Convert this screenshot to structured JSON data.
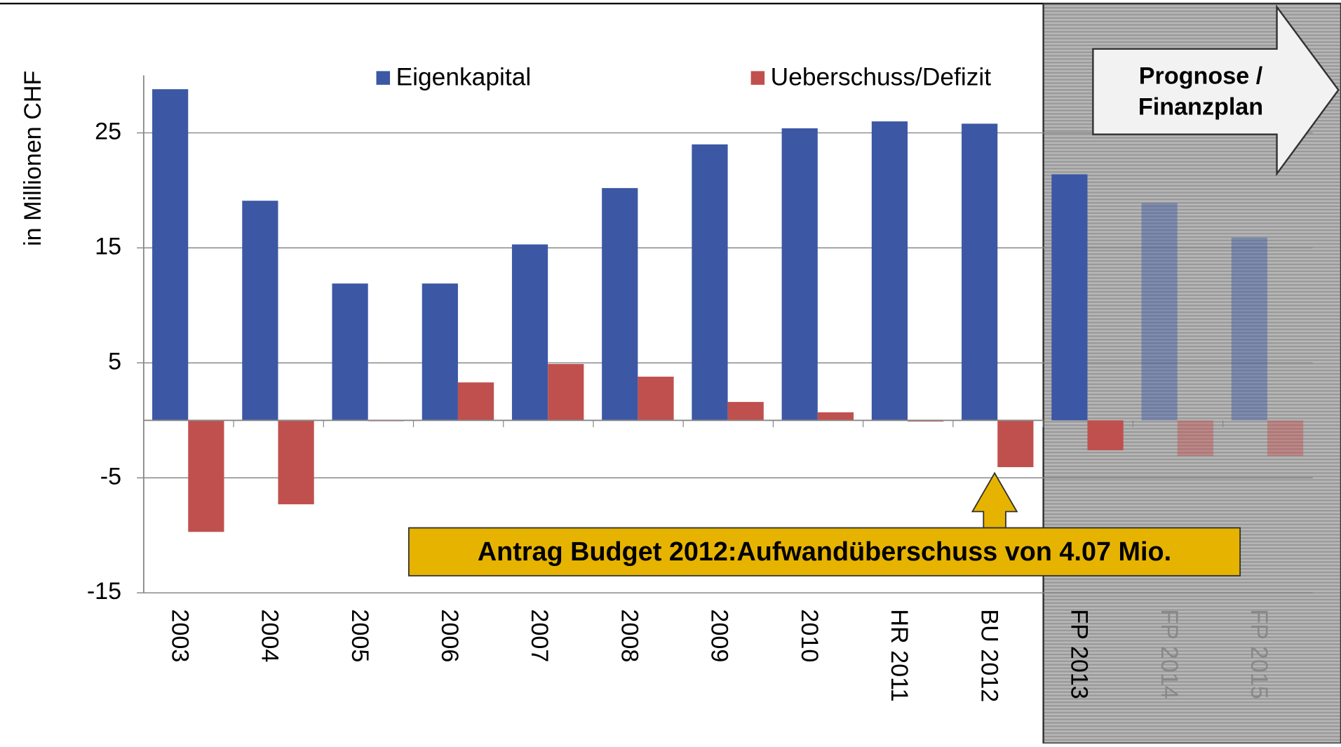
{
  "chart_data": {
    "type": "bar",
    "y_label": "in Millionen CHF",
    "categories": [
      "2003",
      "2004",
      "2005",
      "2006",
      "2007",
      "2008",
      "2009",
      "2010",
      "HR 2011",
      "BU 2012",
      "FP 2013",
      "FP 2014",
      "FP 2015"
    ],
    "series": [
      {
        "name": "Eigenkapital",
        "color": "#3c58a4",
        "values": [
          28.8,
          19.1,
          11.9,
          11.9,
          15.3,
          20.2,
          24.0,
          25.4,
          26.0,
          25.8,
          21.4,
          18.9,
          15.9
        ]
      },
      {
        "name": "Ueberschuss/Defizit",
        "color": "#c0504d",
        "values": [
          -9.7,
          -7.3,
          0,
          3.3,
          4.9,
          3.8,
          1.6,
          0.7,
          -0.1,
          -4.07,
          -2.6,
          -3.1,
          -3.1
        ]
      }
    ],
    "ylim": [
      -15,
      30
    ],
    "yticks": [
      -15,
      -5,
      5,
      15,
      25
    ],
    "grid": true,
    "legend": "top",
    "forecast_label": "Prognose / Finanzplan",
    "annotation": "Antrag Budget 2012:Aufwandüberschuss von 4.07 Mio."
  }
}
